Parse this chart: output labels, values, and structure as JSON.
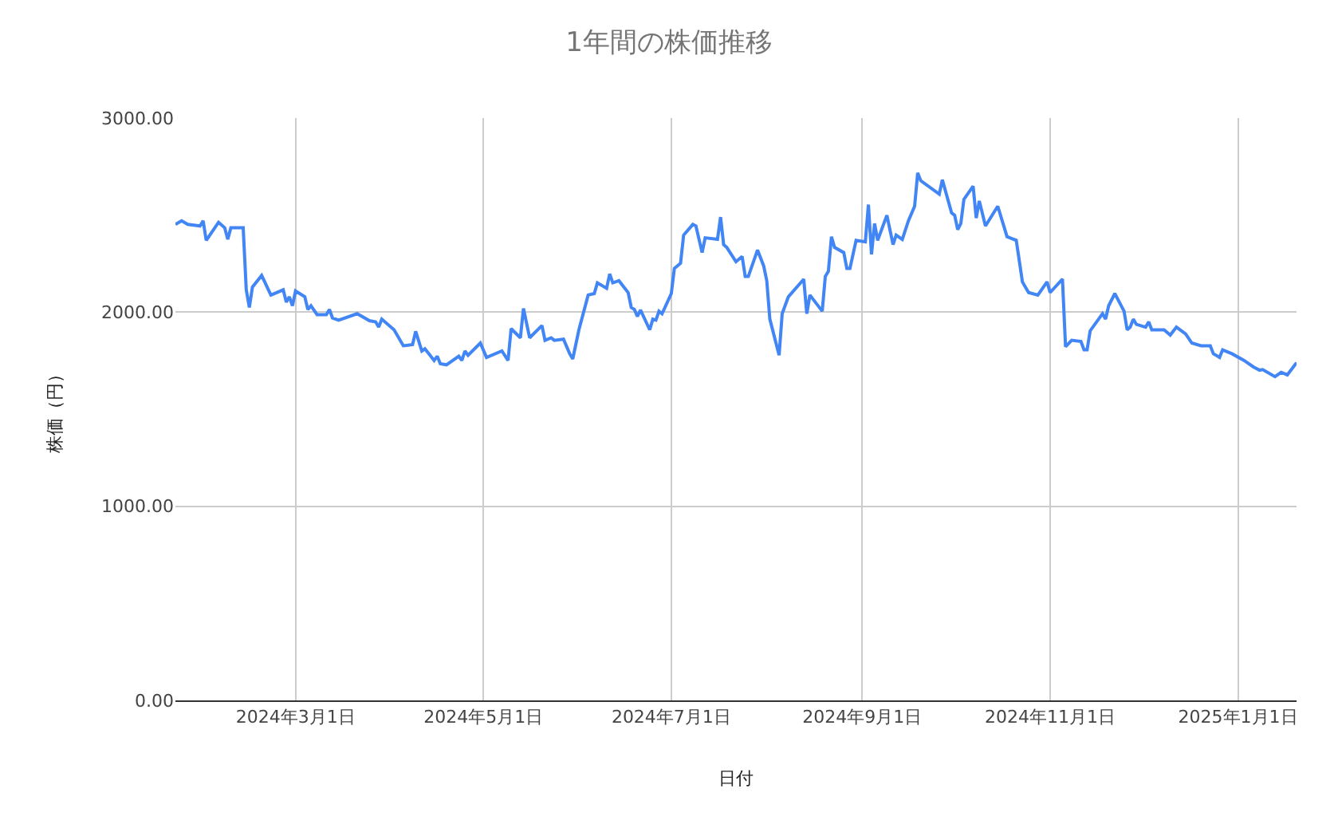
{
  "chart_data": {
    "type": "line",
    "title": "1年間の株価推移",
    "xlabel": "日付",
    "ylabel": "株価（円）",
    "x": [
      "2024-01-22",
      "2024-01-24",
      "2024-01-26",
      "2024-01-30",
      "2024-01-31",
      "2024-02-01",
      "2024-02-05",
      "2024-02-07",
      "2024-02-08",
      "2024-02-09",
      "2024-02-13",
      "2024-02-14",
      "2024-02-15",
      "2024-02-16",
      "2024-02-19",
      "2024-02-22",
      "2024-02-26",
      "2024-02-27",
      "2024-02-28",
      "2024-02-29",
      "2024-03-01",
      "2024-03-04",
      "2024-03-05",
      "2024-03-06",
      "2024-03-08",
      "2024-03-11",
      "2024-03-12",
      "2024-03-13",
      "2024-03-15",
      "2024-03-21",
      "2024-03-25",
      "2024-03-27",
      "2024-03-28",
      "2024-03-29",
      "2024-04-02",
      "2024-04-05",
      "2024-04-08",
      "2024-04-09",
      "2024-04-11",
      "2024-04-12",
      "2024-04-15",
      "2024-04-16",
      "2024-04-17",
      "2024-04-19",
      "2024-04-23",
      "2024-04-24",
      "2024-04-25",
      "2024-04-26",
      "2024-04-30",
      "2024-05-02",
      "2024-05-07",
      "2024-05-09",
      "2024-05-10",
      "2024-05-13",
      "2024-05-14",
      "2024-05-16",
      "2024-05-20",
      "2024-05-21",
      "2024-05-23",
      "2024-05-24",
      "2024-05-27",
      "2024-05-29",
      "2024-05-30",
      "2024-06-01",
      "2024-06-04",
      "2024-06-06",
      "2024-06-07",
      "2024-06-10",
      "2024-06-11",
      "2024-06-12",
      "2024-06-14",
      "2024-06-17",
      "2024-06-18",
      "2024-06-19",
      "2024-06-20",
      "2024-06-21",
      "2024-06-24",
      "2024-06-25",
      "2024-06-26",
      "2024-06-27",
      "2024-06-28",
      "2024-07-01",
      "2024-07-02",
      "2024-07-04",
      "2024-07-05",
      "2024-07-08",
      "2024-07-09",
      "2024-07-11",
      "2024-07-12",
      "2024-07-16",
      "2024-07-17",
      "2024-07-18",
      "2024-07-19",
      "2024-07-22",
      "2024-07-24",
      "2024-07-25",
      "2024-07-26",
      "2024-07-29",
      "2024-07-31",
      "2024-08-01",
      "2024-08-02",
      "2024-08-05",
      "2024-08-06",
      "2024-08-08",
      "2024-08-13",
      "2024-08-14",
      "2024-08-15",
      "2024-08-19",
      "2024-08-20",
      "2024-08-21",
      "2024-08-22",
      "2024-08-23",
      "2024-08-26",
      "2024-08-27",
      "2024-08-28",
      "2024-08-30",
      "2024-09-02",
      "2024-09-03",
      "2024-09-04",
      "2024-09-05",
      "2024-09-06",
      "2024-09-09",
      "2024-09-11",
      "2024-09-12",
      "2024-09-14",
      "2024-09-16",
      "2024-09-18",
      "2024-09-19",
      "2024-09-20",
      "2024-09-26",
      "2024-09-27",
      "2024-09-30",
      "2024-10-01",
      "2024-10-02",
      "2024-10-03",
      "2024-10-04",
      "2024-10-07",
      "2024-10-08",
      "2024-10-09",
      "2024-10-11",
      "2024-10-15",
      "2024-10-18",
      "2024-10-21",
      "2024-10-23",
      "2024-10-25",
      "2024-10-28",
      "2024-10-31",
      "2024-11-01",
      "2024-11-05",
      "2024-11-06",
      "2024-11-08",
      "2024-11-11",
      "2024-11-12",
      "2024-11-13",
      "2024-11-14",
      "2024-11-17",
      "2024-11-18",
      "2024-11-19",
      "2024-11-20",
      "2024-11-22",
      "2024-11-25",
      "2024-11-26",
      "2024-11-27",
      "2024-11-28",
      "2024-11-29",
      "2024-12-02",
      "2024-12-03",
      "2024-12-04",
      "2024-12-08",
      "2024-12-10",
      "2024-12-12",
      "2024-12-15",
      "2024-12-17",
      "2024-12-20",
      "2024-12-23",
      "2024-12-24",
      "2024-12-26",
      "2024-12-27",
      "2024-12-30",
      "2025-01-03",
      "2025-01-04",
      "2025-01-06",
      "2025-01-08",
      "2025-01-09",
      "2025-01-13",
      "2025-01-15",
      "2025-01-17",
      "2025-01-20"
    ],
    "series": [
      {
        "color": "#4285f4",
        "values": [
          2452,
          2471,
          2452,
          2444,
          2471,
          2370,
          2463,
          2435,
          2375,
          2435,
          2435,
          2115,
          2024,
          2129,
          2189,
          2088,
          2115,
          2052,
          2079,
          2033,
          2109,
          2079,
          2014,
          2033,
          1987,
          1987,
          2014,
          1970,
          1959,
          1992,
          1956,
          1950,
          1923,
          1964,
          1909,
          1827,
          1833,
          1901,
          1800,
          1811,
          1751,
          1773,
          1734,
          1729,
          1773,
          1751,
          1800,
          1778,
          1841,
          1767,
          1800,
          1751,
          1915,
          1868,
          2019,
          1868,
          1931,
          1855,
          1868,
          1855,
          1861,
          1786,
          1759,
          1909,
          2088,
          2096,
          2151,
          2123,
          2197,
          2151,
          2162,
          2101,
          2024,
          2014,
          1978,
          2011,
          1909,
          1964,
          1959,
          2005,
          1992,
          2096,
          2225,
          2252,
          2397,
          2452,
          2444,
          2307,
          2383,
          2375,
          2490,
          2348,
          2334,
          2260,
          2287,
          2184,
          2184,
          2320,
          2238,
          2162,
          1964,
          1778,
          1992,
          2079,
          2170,
          1992,
          2088,
          2005,
          2184,
          2211,
          2389,
          2334,
          2307,
          2225,
          2225,
          2370,
          2362,
          2554,
          2298,
          2457,
          2370,
          2499,
          2348,
          2397,
          2375,
          2471,
          2546,
          2718,
          2677,
          2608,
          2682,
          2512,
          2499,
          2425,
          2457,
          2581,
          2649,
          2485,
          2573,
          2444,
          2546,
          2389,
          2370,
          2156,
          2101,
          2088,
          2156,
          2101,
          2170,
          1822,
          1855,
          1849,
          1806,
          1806,
          1904,
          1970,
          1992,
          1964,
          2033,
          2096,
          2005,
          1909,
          1923,
          1964,
          1937,
          1923,
          1950,
          1909,
          1909,
          1882,
          1923,
          1888,
          1841,
          1827,
          1827,
          1786,
          1767,
          1806,
          1786,
          1751,
          1740,
          1718,
          1701,
          1704,
          1668,
          1690,
          1677,
          1740
        ]
      }
    ],
    "xlim": [
      "2024-01-22",
      "2025-01-20"
    ],
    "xticks": [
      {
        "value": "2024-03-01",
        "label": "2024年3月1日"
      },
      {
        "value": "2024-05-01",
        "label": "2024年5月1日"
      },
      {
        "value": "2024-07-01",
        "label": "2024年7月1日"
      },
      {
        "value": "2024-09-01",
        "label": "2024年9月1日"
      },
      {
        "value": "2024-11-01",
        "label": "2024年11月1日"
      },
      {
        "value": "2025-01-01",
        "label": "2025年1月1日"
      }
    ],
    "ylim": [
      0,
      3000
    ],
    "yticks": [
      {
        "value": 0,
        "label": "0.00"
      },
      {
        "value": 1000,
        "label": "1000.00"
      },
      {
        "value": 2000,
        "label": "2000.00"
      },
      {
        "value": 3000,
        "label": "3000.00"
      }
    ],
    "grid": true,
    "line_style": "solid"
  }
}
